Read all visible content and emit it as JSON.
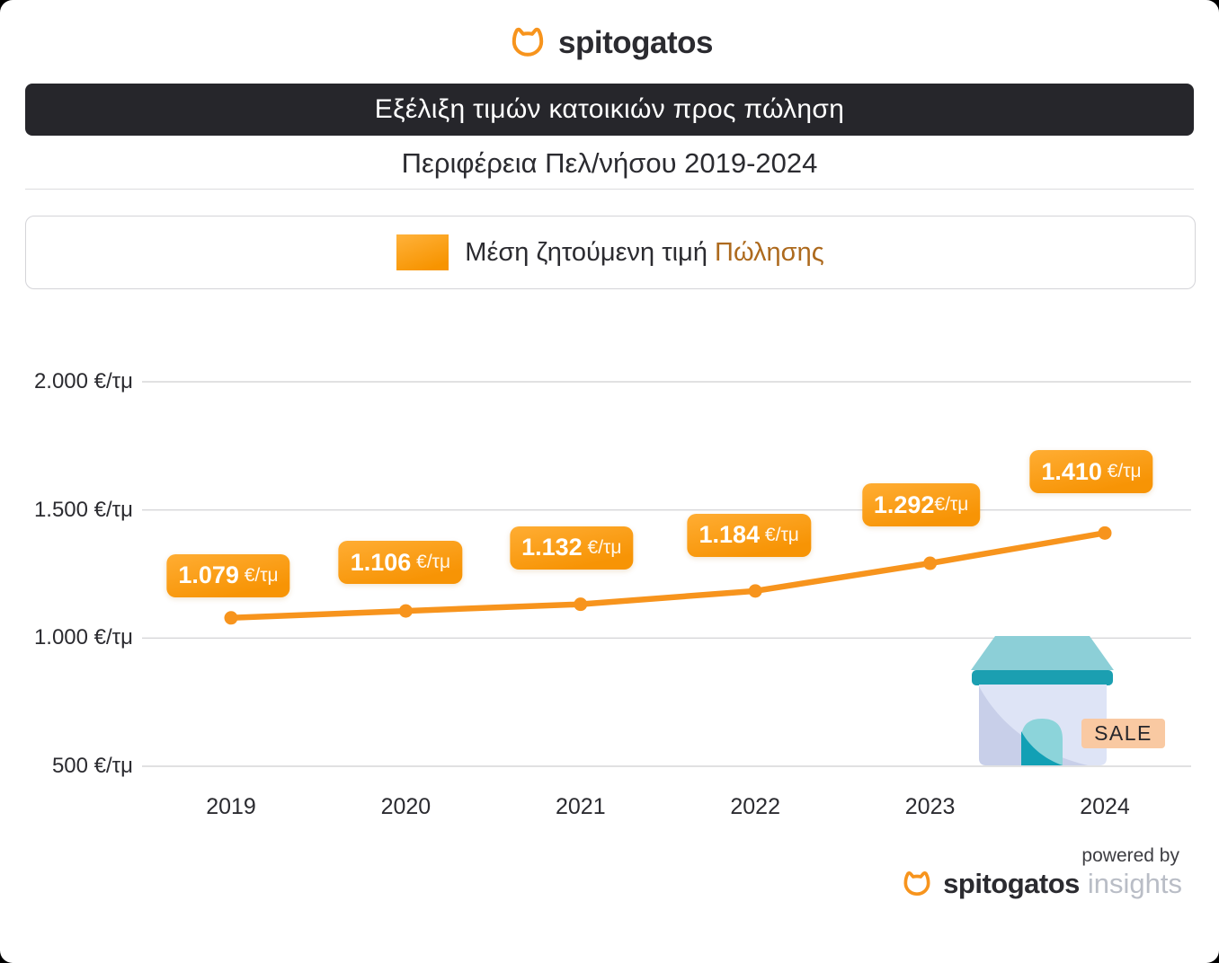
{
  "brand": {
    "logo_text": "spitogatos"
  },
  "header": {
    "title": "Εξέλιξη τιμών κατοικιών προς πώληση",
    "subtitle": "Περιφέρεια Πελ/νήσου 2019-2024"
  },
  "legend": {
    "label": "Μέση ζητούμενη τιμή ",
    "highlight": "Πώλησης"
  },
  "house": {
    "badge": "SALE"
  },
  "footer": {
    "powered_by": "powered by",
    "brand": "spitogatos",
    "product": "insights"
  },
  "colors": {
    "accent_orange": "#F7941D",
    "label_gradient_top": "#FFAD33",
    "label_gradient_bottom": "#F79405",
    "highlight_text": "#AD6A1E",
    "banner_bg": "#26262B",
    "grid": "#D7D7D9",
    "teal_dark": "#1B9FB1",
    "teal_light": "#8CCFD7",
    "house_body": "#DEE4F6",
    "house_shade": "#C8CFE9",
    "sale_bg": "#F9C9A2"
  },
  "chart_data": {
    "type": "line",
    "title": "Εξέλιξη τιμών κατοικιών προς πώληση",
    "subtitle": "Περιφέρεια Πελ/νήσου 2019-2024",
    "xlabel": "",
    "ylabel": "€/τμ",
    "unit": "€/τμ",
    "grid": true,
    "legend_position": "top",
    "ylim": [
      500,
      2000
    ],
    "categories": [
      "2019",
      "2020",
      "2021",
      "2022",
      "2023",
      "2024"
    ],
    "series": [
      {
        "name": "Μέση ζητούμενη τιμή Πώλησης",
        "values": [
          1079,
          1106,
          1132,
          1184,
          1292,
          1410
        ]
      }
    ],
    "point_labels": [
      {
        "value_label": "1.079",
        "suffix": " €/τμ"
      },
      {
        "value_label": "1.106",
        "suffix": " €/τμ"
      },
      {
        "value_label": "1.132",
        "suffix": " €/τμ"
      },
      {
        "value_label": "1.184",
        "suffix": " €/τμ"
      },
      {
        "value_label": "1.292",
        "suffix": "€/τμ"
      },
      {
        "value_label": "1.410",
        "suffix": " €/τμ"
      }
    ],
    "y_ticks": [
      {
        "value": 2000,
        "label": "2.000 €/τμ"
      },
      {
        "value": 1500,
        "label": "1.500 €/τμ"
      },
      {
        "value": 1000,
        "label": "1.000 €/τμ"
      },
      {
        "value": 500,
        "label": "500 €/τμ"
      }
    ]
  }
}
